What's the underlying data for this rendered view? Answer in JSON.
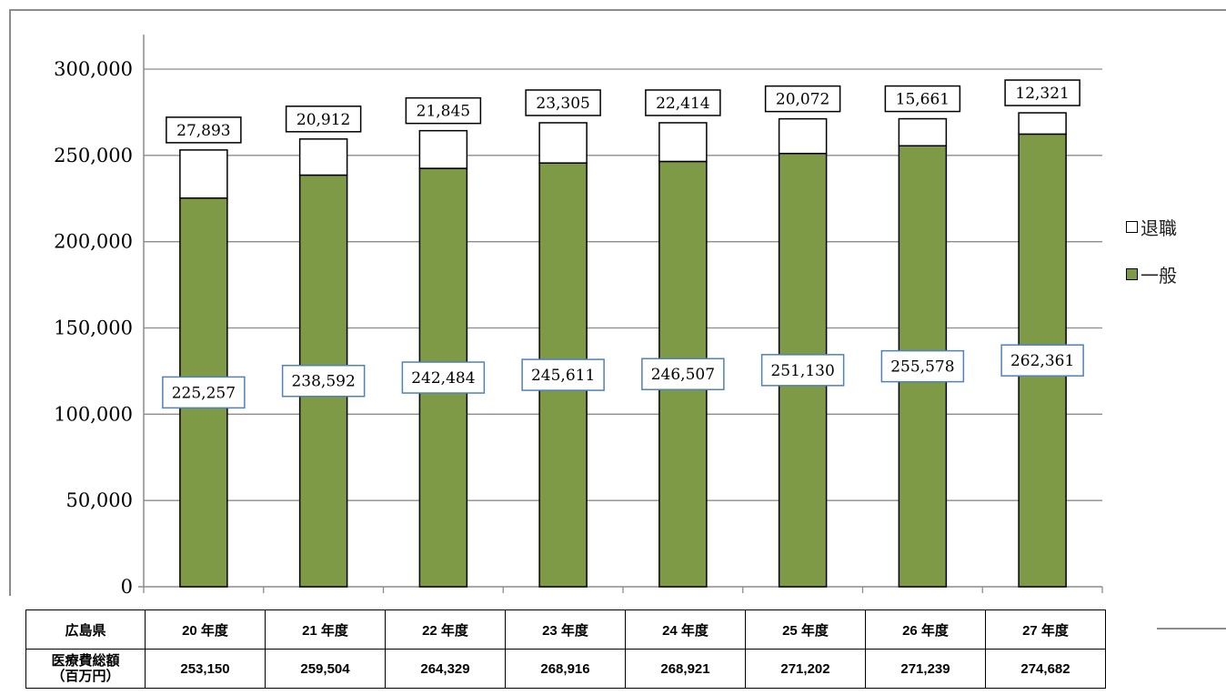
{
  "chart_data": {
    "type": "bar",
    "stacked": true,
    "categories": [
      "20 年度",
      "21 年度",
      "22 年度",
      "23 年度",
      "24 年度",
      "25 年度",
      "26 年度",
      "27 年度"
    ],
    "series": [
      {
        "name": "一般",
        "values": [
          225257,
          238592,
          242484,
          245611,
          246507,
          251130,
          255578,
          262361
        ],
        "color": "#7f9a47"
      },
      {
        "name": "退職",
        "values": [
          27893,
          20912,
          21845,
          23305,
          22414,
          20072,
          15661,
          12321
        ],
        "color": "#ffffff"
      }
    ],
    "ylim": [
      0,
      300000
    ],
    "yticks": [
      "0",
      "50,000",
      "100,000",
      "150,000",
      "200,000",
      "250,000",
      "300,000"
    ],
    "grid": true,
    "legend_position": "right"
  },
  "labels": {
    "general": [
      "225,257",
      "238,592",
      "242,484",
      "245,611",
      "246,507",
      "251,130",
      "255,578",
      "262,361"
    ],
    "retired": [
      "27,893",
      "20,912",
      "21,845",
      "23,305",
      "22,414",
      "20,072",
      "15,661",
      "12,321"
    ]
  },
  "legend": {
    "retired": "退職",
    "general": "一般"
  },
  "table": {
    "region_label": "広島県",
    "row_label_line1": "医療費総額",
    "row_label_line2": "（百万円）",
    "years": [
      "20 年度",
      "21 年度",
      "22 年度",
      "23 年度",
      "24 年度",
      "25 年度",
      "26 年度",
      "27 年度"
    ],
    "totals": [
      "253,150",
      "259,504",
      "264,329",
      "268,916",
      "268,921",
      "271,202",
      "271,239",
      "274,682"
    ]
  },
  "colors": {
    "general_fill": "#7f9a47",
    "label_border_general": "#4f81bd",
    "grid": "#8c8c8c"
  }
}
